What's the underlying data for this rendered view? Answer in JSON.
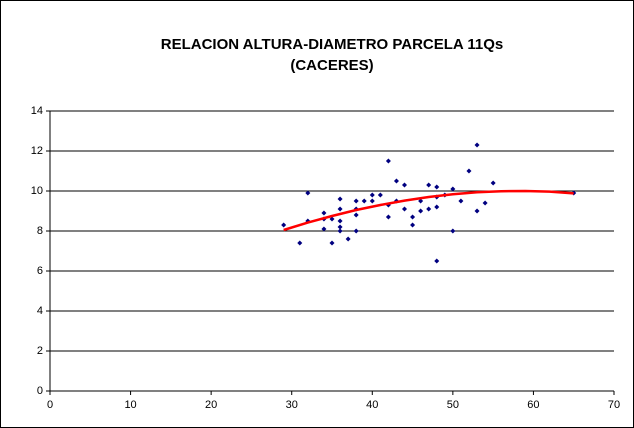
{
  "chart_data": {
    "type": "scatter",
    "title": [
      "RELACION ALTURA-DIAMETRO PARCELA 11Qs",
      "(CACERES)"
    ],
    "x": [
      29,
      31,
      32,
      32,
      34,
      34,
      34,
      35,
      35,
      36,
      36,
      36,
      36,
      36,
      37,
      38,
      38,
      38,
      38,
      39,
      40,
      40,
      41,
      42,
      42,
      42,
      43,
      43,
      44,
      44,
      45,
      45,
      46,
      46,
      47,
      47,
      48,
      48,
      48,
      48,
      49,
      50,
      50,
      51,
      52,
      53,
      53,
      54,
      55,
      65
    ],
    "values": [
      8.3,
      7.4,
      9.9,
      8.5,
      8.9,
      8.6,
      8.1,
      8.6,
      7.4,
      9.6,
      9.1,
      8.5,
      8.2,
      8.0,
      7.6,
      9.5,
      9.1,
      8.8,
      8.0,
      9.5,
      9.8,
      9.5,
      9.8,
      11.5,
      9.3,
      8.7,
      10.5,
      9.5,
      10.3,
      9.1,
      8.7,
      8.3,
      9.5,
      9.0,
      10.3,
      9.1,
      10.2,
      9.7,
      9.2,
      6.5,
      9.8,
      10.1,
      8.0,
      9.5,
      11.0,
      12.3,
      9.0,
      9.4,
      10.4,
      9.9
    ],
    "color": "#000080",
    "trendline": {
      "color": "#ff0000",
      "x": [
        29,
        32,
        35,
        38,
        41,
        44,
        47,
        50,
        53,
        56,
        59,
        62,
        65
      ],
      "values": [
        8.05,
        8.42,
        8.75,
        9.05,
        9.3,
        9.52,
        9.7,
        9.84,
        9.94,
        9.99,
        10.0,
        9.97,
        9.88
      ]
    },
    "xlim": [
      0,
      70
    ],
    "xticks": [
      0,
      10,
      20,
      30,
      40,
      50,
      60,
      70
    ],
    "ylim": [
      0,
      14
    ],
    "yticks": [
      0,
      2,
      4,
      6,
      8,
      10,
      12,
      14
    ],
    "grid": true
  }
}
